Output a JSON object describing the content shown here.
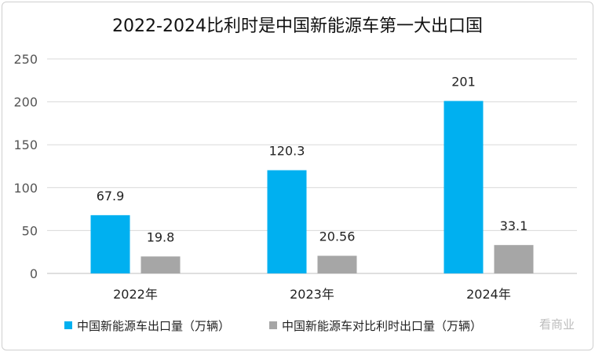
{
  "chart_data": {
    "type": "bar",
    "title": "2022-2024比利时是中国新能源车第一大出口国",
    "categories": [
      "2022年",
      "2023年",
      "2024年"
    ],
    "series": [
      {
        "name": "中国新能源车出口量（万辆）",
        "values": [
          67.9,
          120.3,
          201
        ],
        "labels": [
          "67.9",
          "120.3",
          "201"
        ]
      },
      {
        "name": "中国新能源车对比利时出口量（万辆）",
        "values": [
          19.8,
          20.56,
          33.1
        ],
        "labels": [
          "19.8",
          "20.56",
          "33.1"
        ]
      }
    ],
    "yticks": [
      "0",
      "50",
      "100",
      "150",
      "200",
      "250"
    ],
    "ylim": [
      0,
      250
    ],
    "grid": true,
    "legend_position": "bottom",
    "colors": [
      "#00b0f0",
      "#a6a6a6"
    ],
    "xlabel": "",
    "ylabel": ""
  },
  "watermark": "看商业"
}
